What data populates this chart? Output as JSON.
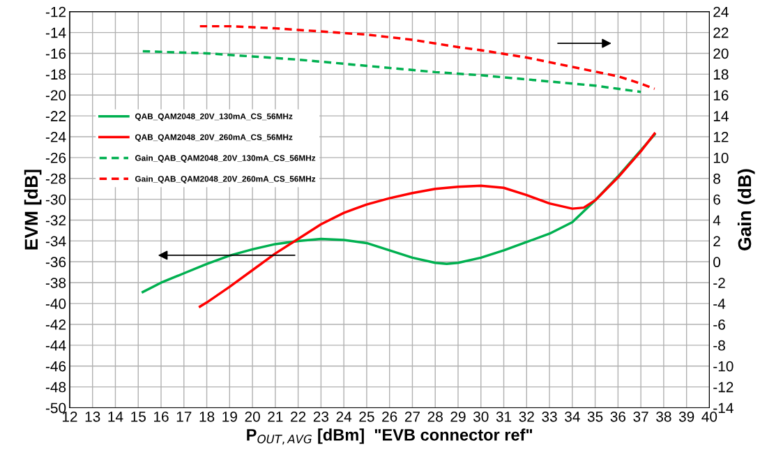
{
  "chart_data": {
    "type": "line",
    "xlabel": "P$_{OUT,AVG}$ [dBm]  \"EVB connector ref\"",
    "ylabel": "EVM [dB]",
    "y2label": "Gain (dB)",
    "xlim": [
      12,
      40
    ],
    "xticks": [
      12,
      13,
      14,
      15,
      16,
      17,
      18,
      19,
      20,
      21,
      22,
      23,
      24,
      25,
      26,
      27,
      28,
      29,
      30,
      31,
      32,
      33,
      34,
      35,
      36,
      37,
      38,
      39,
      40
    ],
    "ylim": [
      -50,
      -12
    ],
    "yticks": [
      -50,
      -48,
      -46,
      -44,
      -42,
      -40,
      -38,
      -36,
      -34,
      -32,
      -30,
      -28,
      -26,
      -24,
      -22,
      -20,
      -18,
      -16,
      -14,
      -12
    ],
    "y2lim": [
      -14,
      24
    ],
    "y2ticks": [
      -14,
      -12,
      -10,
      -8,
      -6,
      -4,
      -2,
      0,
      2,
      4,
      6,
      8,
      10,
      12,
      14,
      16,
      18,
      20,
      22,
      24
    ],
    "grid": true,
    "legend": "left",
    "marker": "none",
    "series": [
      {
        "name": "QAB_QAM2048_20V_130mA_CS_56MHz",
        "color": "#00b050",
        "line_style": "solid",
        "x": [
          15.2,
          16,
          17,
          18,
          19,
          20,
          21,
          22,
          23,
          24,
          25,
          26,
          27,
          28,
          28.5,
          29,
          30,
          31,
          32,
          33,
          34,
          35,
          36,
          37,
          37.6
        ],
        "values": [
          -38.9,
          -38.0,
          -37.1,
          -36.2,
          -35.4,
          -34.8,
          -34.3,
          -34.0,
          -33.8,
          -33.9,
          -34.2,
          -34.9,
          -35.6,
          -36.1,
          -36.2,
          -36.1,
          -35.6,
          -34.9,
          -34.1,
          -33.3,
          -32.2,
          -30.1,
          -27.8,
          -25.3,
          -23.8
        ]
      },
      {
        "name": "QAB_QAM2048_20V_260mA_CS_56MHz",
        "color": "#ff0000",
        "line_style": "solid",
        "x": [
          17.7,
          18,
          19,
          20,
          21,
          22,
          23,
          24,
          25,
          26,
          27,
          28,
          29,
          30,
          31,
          32,
          33,
          34,
          34.5,
          35,
          36,
          37,
          37.6
        ],
        "values": [
          -40.3,
          -39.9,
          -38.4,
          -36.8,
          -35.2,
          -33.8,
          -32.4,
          -31.3,
          -30.5,
          -29.9,
          -29.4,
          -29.0,
          -28.8,
          -28.7,
          -28.9,
          -29.6,
          -30.4,
          -30.9,
          -30.8,
          -30.1,
          -27.9,
          -25.4,
          -23.7
        ]
      },
      {
        "name": "Gain_QAB_QAM2048_20V_130mA_CS_56MHz",
        "color": "#00b050",
        "line_style": "dashed",
        "axis": "y2",
        "x": [
          15.2,
          18,
          20,
          22,
          24,
          26,
          28,
          30,
          32,
          34,
          35,
          36,
          37
        ],
        "values": [
          20.2,
          20.0,
          19.7,
          19.4,
          19.0,
          18.6,
          18.2,
          17.9,
          17.5,
          17.1,
          16.9,
          16.6,
          16.3
        ]
      },
      {
        "name": "Gain_QAB_QAM2048_20V_260mA_CS_56MHz",
        "color": "#ff0000",
        "line_style": "dashed",
        "axis": "y2",
        "x": [
          17.7,
          19,
          21,
          23,
          25,
          27,
          29,
          30,
          32,
          34,
          36,
          37,
          37.6
        ],
        "values": [
          22.6,
          22.6,
          22.4,
          22.1,
          21.8,
          21.3,
          20.6,
          20.3,
          19.6,
          18.7,
          17.8,
          17.1,
          16.6
        ]
      }
    ]
  }
}
